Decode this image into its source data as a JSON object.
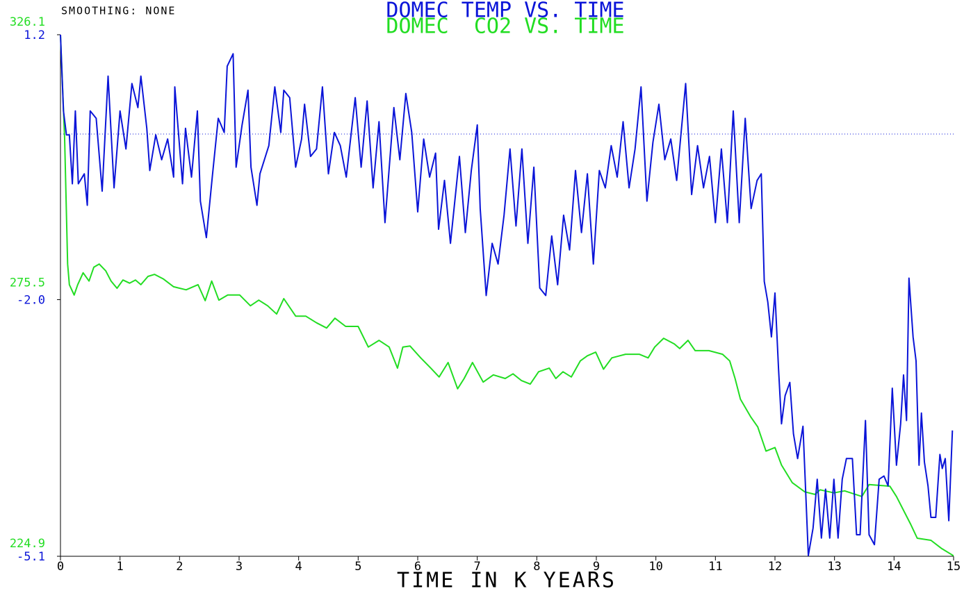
{
  "chart_data": {
    "type": "line",
    "title": "DOMEC TEMP VS. TIME",
    "subtitle": "DOMEC  CO2 VS. TIME",
    "annotation": "SMOOTHING: NONE",
    "x_label": "TIME IN K YEARS",
    "xlim": [
      0,
      15
    ],
    "xticks": [
      0,
      1,
      2,
      3,
      4,
      5,
      6,
      7,
      8,
      9,
      10,
      11,
      12,
      13,
      14,
      15
    ],
    "ylim": [
      -5.1,
      1.2
    ],
    "yticks": [
      -5.1,
      {
        "value": -2,
        "label": "-2.0"
      },
      1.2
    ],
    "y2lim": [
      224.9,
      326.1
    ],
    "y2ticks": [
      224.9,
      275.5,
      326.1
    ],
    "reference_line": 0,
    "series": [
      {
        "name": "DOMEC TEMP",
        "color": "#0a14d8",
        "x": [
          0,
          0.05,
          0.1,
          0.15,
          0.2,
          0.25,
          0.3,
          0.4,
          0.45,
          0.5,
          0.6,
          0.7,
          0.8,
          0.9,
          1.0,
          1.1,
          1.2,
          1.3,
          1.35,
          1.45,
          1.5,
          1.6,
          1.7,
          1.8,
          1.9,
          1.92,
          2.05,
          2.1,
          2.2,
          2.3,
          2.35,
          2.45,
          2.55,
          2.65,
          2.75,
          2.8,
          2.9,
          2.95,
          3.05,
          3.15,
          3.2,
          3.3,
          3.35,
          3.5,
          3.6,
          3.7,
          3.75,
          3.85,
          3.95,
          4.05,
          4.1,
          4.2,
          4.3,
          4.4,
          4.5,
          4.6,
          4.7,
          4.8,
          4.95,
          5.05,
          5.15,
          5.25,
          5.35,
          5.45,
          5.6,
          5.7,
          5.8,
          5.9,
          6.0,
          6.1,
          6.2,
          6.3,
          6.35,
          6.45,
          6.55,
          6.7,
          6.8,
          6.9,
          7.0,
          7.05,
          7.15,
          7.25,
          7.35,
          7.45,
          7.55,
          7.65,
          7.75,
          7.85,
          7.95,
          8.05,
          8.15,
          8.25,
          8.35,
          8.45,
          8.55,
          8.65,
          8.75,
          8.85,
          8.95,
          9.05,
          9.15,
          9.25,
          9.35,
          9.45,
          9.55,
          9.65,
          9.75,
          9.85,
          9.95,
          10.05,
          10.15,
          10.25,
          10.35,
          10.5,
          10.6,
          10.7,
          10.8,
          10.9,
          11.0,
          11.1,
          11.2,
          11.3,
          11.4,
          11.5,
          11.6,
          11.7,
          11.77,
          11.82,
          11.88,
          11.94,
          12.0,
          12.06,
          12.11,
          12.17,
          12.25,
          12.31,
          12.38,
          12.47,
          12.56,
          12.64,
          12.71,
          12.78,
          12.85,
          12.92,
          12.99,
          13.06,
          13.13,
          13.2,
          13.3,
          13.37,
          13.43,
          13.52,
          13.58,
          13.67,
          13.75,
          13.83,
          13.9,
          13.97,
          14.04,
          14.11,
          14.16,
          14.21,
          14.25,
          14.32,
          14.37,
          14.42,
          14.46,
          14.51,
          14.57,
          14.62,
          14.7,
          14.77,
          14.81,
          14.86,
          14.92,
          14.98
        ],
        "values": [
          1.2,
          0.28,
          -0.01,
          -0.01,
          -0.6,
          0.28,
          -0.6,
          -0.48,
          -0.86,
          0.28,
          0.19,
          -0.69,
          0.7,
          -0.65,
          0.28,
          -0.18,
          0.61,
          0.32,
          0.7,
          0.07,
          -0.44,
          -0.01,
          -0.31,
          -0.06,
          -0.52,
          0.57,
          -0.6,
          0.07,
          -0.52,
          0.28,
          -0.81,
          -1.25,
          -0.52,
          0.19,
          0.02,
          0.82,
          0.97,
          -0.4,
          0.11,
          0.53,
          -0.4,
          -0.86,
          -0.48,
          -0.14,
          0.57,
          0.02,
          0.53,
          0.44,
          -0.4,
          -0.06,
          0.36,
          -0.27,
          -0.18,
          0.57,
          -0.48,
          0.02,
          -0.14,
          -0.52,
          0.44,
          -0.4,
          0.4,
          -0.65,
          0.15,
          -1.07,
          0.32,
          -0.31,
          0.49,
          0.02,
          -0.94,
          -0.06,
          -0.52,
          -0.23,
          -1.15,
          -0.56,
          -1.32,
          -0.27,
          -1.19,
          -0.44,
          0.11,
          -0.9,
          -1.95,
          -1.32,
          -1.57,
          -0.98,
          -0.18,
          -1.11,
          -0.18,
          -1.32,
          -0.4,
          -1.86,
          -1.95,
          -1.23,
          -1.82,
          -0.98,
          -1.4,
          -0.44,
          -1.19,
          -0.48,
          -1.57,
          -0.44,
          -0.65,
          -0.14,
          -0.52,
          0.15,
          -0.65,
          -0.18,
          0.57,
          -0.81,
          -0.1,
          0.36,
          -0.31,
          -0.06,
          -0.56,
          0.61,
          -0.73,
          -0.14,
          -0.65,
          -0.27,
          -1.07,
          -0.18,
          -1.07,
          0.28,
          -1.07,
          0.19,
          -0.9,
          -0.56,
          -0.48,
          -1.78,
          -2.03,
          -2.45,
          -1.92,
          -2.83,
          -3.5,
          -3.16,
          -3,
          -3.62,
          -3.92,
          -3.53,
          -5.09,
          -4.76,
          -4.17,
          -4.88,
          -4.29,
          -4.88,
          -4.17,
          -4.88,
          -4.17,
          -3.92,
          -3.92,
          -4.84,
          -4.84,
          -3.46,
          -4.84,
          -4.96,
          -4.17,
          -4.13,
          -4.25,
          -3.07,
          -4,
          -3.5,
          -2.91,
          -3.46,
          -1.74,
          -2.45,
          -2.74,
          -4,
          -3.37,
          -3.96,
          -4.25,
          -4.63,
          -4.63,
          -3.87,
          -4.04,
          -3.92,
          -4.67,
          -3.58
        ]
      },
      {
        "name": "DOMEC CO2",
        "color": "#22dd22",
        "axis": "y2",
        "x": [
          0,
          0.07,
          0.12,
          0.15,
          0.23,
          0.29,
          0.38,
          0.48,
          0.56,
          0.65,
          0.76,
          0.85,
          0.95,
          1.05,
          1.16,
          1.26,
          1.35,
          1.47,
          1.58,
          1.73,
          1.9,
          2.11,
          2.31,
          2.43,
          2.54,
          2.66,
          2.81,
          3.01,
          3.19,
          3.33,
          3.48,
          3.63,
          3.75,
          3.95,
          4.12,
          4.3,
          4.47,
          4.61,
          4.79,
          5.0,
          5.17,
          5.35,
          5.52,
          5.66,
          5.75,
          5.87,
          6.05,
          6.22,
          6.36,
          6.51,
          6.67,
          6.78,
          6.92,
          7.1,
          7.27,
          7.47,
          7.6,
          7.74,
          7.89,
          8.03,
          8.21,
          8.32,
          8.44,
          8.58,
          8.73,
          8.85,
          8.99,
          9.12,
          9.26,
          9.49,
          9.72,
          9.87,
          9.98,
          10.13,
          10.31,
          10.4,
          10.54,
          10.66,
          10.89,
          11.12,
          11.24,
          11.33,
          11.42,
          11.59,
          11.71,
          11.85,
          12.0,
          12.11,
          12.29,
          12.5,
          12.67,
          12.76,
          12.99,
          13.17,
          13.46,
          13.58,
          13.93,
          14.04,
          14.28,
          14.39,
          14.62,
          14.8,
          15.0
        ],
        "values": [
          326.1,
          305.9,
          281.6,
          277.6,
          275.6,
          277.6,
          279.9,
          278.3,
          281.0,
          281.6,
          280.3,
          278.3,
          276.9,
          278.5,
          277.9,
          278.5,
          277.6,
          279.2,
          279.6,
          278.7,
          277.2,
          276.6,
          277.6,
          274.5,
          278.3,
          274.6,
          275.6,
          275.6,
          273.5,
          274.6,
          273.5,
          271.9,
          274.9,
          271.5,
          271.5,
          270.2,
          269.2,
          271.1,
          269.5,
          269.5,
          265.5,
          266.8,
          265.5,
          261.4,
          265.5,
          265.7,
          263.4,
          261.4,
          259.7,
          262.5,
          257.4,
          259.4,
          262.5,
          258.7,
          260.1,
          259.4,
          260.3,
          259.0,
          258.3,
          260.7,
          261.4,
          259.4,
          260.7,
          259.7,
          262.8,
          263.8,
          264.5,
          261.2,
          263.4,
          264.1,
          264.1,
          263.4,
          265.5,
          267.2,
          266.1,
          265.2,
          266.8,
          264.8,
          264.8,
          264.1,
          262.8,
          259.4,
          255.4,
          252.0,
          250.0,
          245.3,
          246.0,
          242.6,
          239.2,
          237.4,
          236.9,
          237.8,
          237.2,
          237.6,
          236.5,
          238.8,
          238.5,
          236.5,
          231.1,
          228.4,
          228.0,
          226.4,
          225.0
        ]
      }
    ]
  }
}
